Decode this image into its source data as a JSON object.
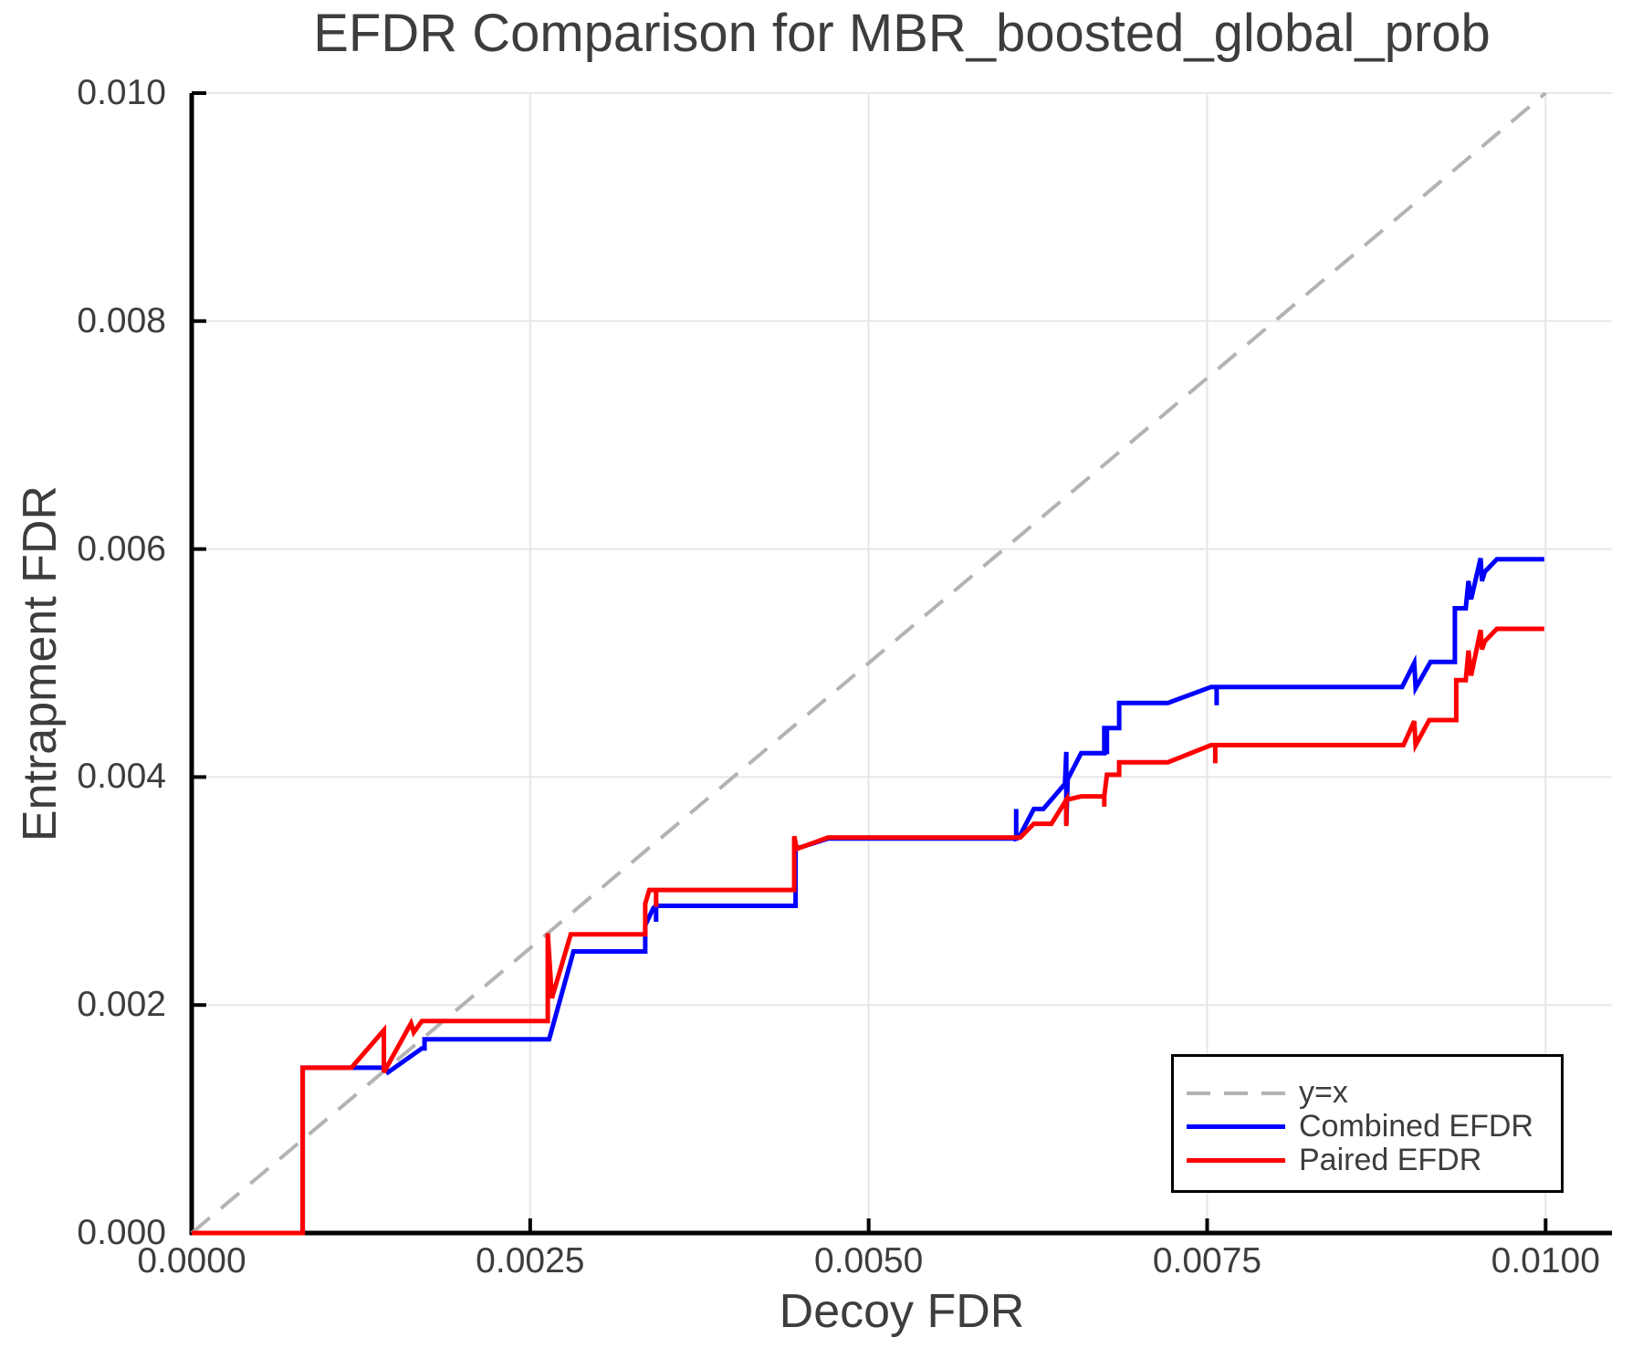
{
  "chart_data": {
    "type": "line",
    "title": "EFDR Comparison for MBR_boosted_global_prob",
    "xlabel": "Decoy FDR",
    "ylabel": "Entrapment FDR",
    "xlim": [
      0,
      0.01049
    ],
    "ylim": [
      0,
      0.01
    ],
    "grid": true,
    "legend_position": "lower right",
    "x_ticks": {
      "values": [
        0.0,
        0.0025,
        0.005,
        0.0075,
        0.01
      ],
      "labels": [
        "0.0000",
        "0.0025",
        "0.0050",
        "0.0075",
        "0.0100"
      ]
    },
    "y_ticks": {
      "values": [
        0.0,
        0.002,
        0.004,
        0.006,
        0.008,
        0.01
      ],
      "labels": [
        "0.000",
        "0.002",
        "0.004",
        "0.006",
        "0.008",
        "0.010"
      ]
    },
    "style": {
      "background": "#ffffff",
      "grid_color": "#e7e7e7",
      "spine_color": "#000000",
      "tick_color": "#000000",
      "text_color": "#3d3d3d",
      "legend_border": "#000000"
    },
    "series": [
      {
        "name": "y=x",
        "style": "dashed",
        "color": "#b3b3b3",
        "width": 4,
        "points": [
          [
            0,
            0
          ],
          [
            0.01,
            0.01
          ]
        ]
      },
      {
        "name": "Combined EFDR",
        "style": "solid",
        "color": "#0000ff",
        "width": 5,
        "points": [
          [
            0,
            0
          ],
          [
            0.00082,
            0
          ],
          [
            0.00082,
            0.00145
          ],
          [
            0.00143,
            0.00145
          ],
          [
            0.00145,
            0.00141
          ],
          [
            0.0017,
            0.00162
          ],
          [
            0.00172,
            0.00162
          ],
          [
            0.00172,
            0.0017
          ],
          [
            0.00264,
            0.0017
          ],
          [
            0.00282,
            0.00247
          ],
          [
            0.00335,
            0.00247
          ],
          [
            0.00335,
            0.0027
          ],
          [
            0.00341,
            0.00285
          ],
          [
            0.00343,
            0.00287
          ],
          [
            0.00343,
            0.00273
          ],
          [
            0.00343,
            0.00287
          ],
          [
            0.00446,
            0.00287
          ],
          [
            0.00446,
            0.00337
          ],
          [
            0.0047,
            0.00346
          ],
          [
            0.00609,
            0.00346
          ],
          [
            0.00609,
            0.00372
          ],
          [
            0.00609,
            0.00346
          ],
          [
            0.00611,
            0.00347
          ],
          [
            0.00622,
            0.00372
          ],
          [
            0.00629,
            0.00372
          ],
          [
            0.00645,
            0.00394
          ],
          [
            0.00646,
            0.00422
          ],
          [
            0.00646,
            0.00359
          ],
          [
            0.00647,
            0.00398
          ],
          [
            0.00657,
            0.00421
          ],
          [
            0.00674,
            0.00421
          ],
          [
            0.00674,
            0.00443
          ],
          [
            0.00676,
            0.00443
          ],
          [
            0.00676,
            0.0042
          ],
          [
            0.00676,
            0.00443
          ],
          [
            0.00685,
            0.00443
          ],
          [
            0.00685,
            0.00465
          ],
          [
            0.00721,
            0.00465
          ],
          [
            0.00753,
            0.00479
          ],
          [
            0.00757,
            0.00479
          ],
          [
            0.00757,
            0.00463
          ],
          [
            0.00757,
            0.00479
          ],
          [
            0.00894,
            0.00479
          ],
          [
            0.00903,
            0.005
          ],
          [
            0.00904,
            0.00478
          ],
          [
            0.00915,
            0.00501
          ],
          [
            0.00933,
            0.00501
          ],
          [
            0.00933,
            0.00548
          ],
          [
            0.00941,
            0.00548
          ],
          [
            0.00943,
            0.00572
          ],
          [
            0.00945,
            0.00556
          ],
          [
            0.00952,
            0.00592
          ],
          [
            0.00953,
            0.00572
          ],
          [
            0.00955,
            0.0058
          ],
          [
            0.00964,
            0.00591
          ],
          [
            0.00999,
            0.00591
          ]
        ]
      },
      {
        "name": "Paired EFDR",
        "style": "solid",
        "color": "#ff0000",
        "width": 5,
        "points": [
          [
            0,
            0
          ],
          [
            0.00082,
            0
          ],
          [
            0.00082,
            0.00145
          ],
          [
            0.00118,
            0.00145
          ],
          [
            0.00142,
            0.00178
          ],
          [
            0.00142,
            0.00141
          ],
          [
            0.00162,
            0.00184
          ],
          [
            0.00164,
            0.00176
          ],
          [
            0.0017,
            0.00186
          ],
          [
            0.00263,
            0.00186
          ],
          [
            0.00263,
            0.00263
          ],
          [
            0.00266,
            0.00206
          ],
          [
            0.0028,
            0.00262
          ],
          [
            0.00335,
            0.00262
          ],
          [
            0.00335,
            0.00289
          ],
          [
            0.00338,
            0.00301
          ],
          [
            0.00343,
            0.00301
          ],
          [
            0.00343,
            0.00286
          ],
          [
            0.00343,
            0.00301
          ],
          [
            0.00445,
            0.00301
          ],
          [
            0.00445,
            0.00348
          ],
          [
            0.00447,
            0.00337
          ],
          [
            0.0047,
            0.00347
          ],
          [
            0.00612,
            0.00347
          ],
          [
            0.00622,
            0.00359
          ],
          [
            0.00635,
            0.00359
          ],
          [
            0.00646,
            0.0038
          ],
          [
            0.00646,
            0.00357
          ],
          [
            0.00646,
            0.0038
          ],
          [
            0.00657,
            0.00383
          ],
          [
            0.00669,
            0.00383
          ],
          [
            0.00674,
            0.00383
          ],
          [
            0.00674,
            0.00374
          ],
          [
            0.00674,
            0.00383
          ],
          [
            0.00676,
            0.00402
          ],
          [
            0.00685,
            0.00402
          ],
          [
            0.00685,
            0.00413
          ],
          [
            0.00721,
            0.00413
          ],
          [
            0.00753,
            0.00428
          ],
          [
            0.00756,
            0.00428
          ],
          [
            0.00756,
            0.00412
          ],
          [
            0.00756,
            0.00428
          ],
          [
            0.00895,
            0.00428
          ],
          [
            0.00903,
            0.00449
          ],
          [
            0.00904,
            0.00428
          ],
          [
            0.00914,
            0.0045
          ],
          [
            0.00934,
            0.0045
          ],
          [
            0.00934,
            0.00485
          ],
          [
            0.00941,
            0.00485
          ],
          [
            0.00943,
            0.00511
          ],
          [
            0.00945,
            0.00489
          ],
          [
            0.00952,
            0.00529
          ],
          [
            0.00953,
            0.00512
          ],
          [
            0.00955,
            0.00519
          ],
          [
            0.00964,
            0.0053
          ],
          [
            0.00999,
            0.0053
          ]
        ]
      }
    ]
  }
}
